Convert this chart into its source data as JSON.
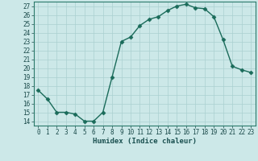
{
  "x": [
    0,
    1,
    2,
    3,
    4,
    5,
    6,
    7,
    8,
    9,
    10,
    11,
    12,
    13,
    14,
    15,
    16,
    17,
    18,
    19,
    20,
    21,
    22,
    23
  ],
  "y": [
    17.5,
    16.5,
    15.0,
    15.0,
    14.8,
    14.0,
    14.0,
    15.0,
    19.0,
    23.0,
    23.5,
    24.8,
    25.5,
    25.8,
    26.5,
    27.0,
    27.2,
    26.8,
    26.7,
    25.8,
    23.2,
    20.2,
    19.8,
    19.5
  ],
  "line_color": "#1a6b5a",
  "marker": "D",
  "marker_size": 2.5,
  "bg_color": "#cce8e8",
  "grid_color": "#aad0d0",
  "xlabel": "Humidex (Indice chaleur)",
  "xlim": [
    -0.5,
    23.5
  ],
  "ylim": [
    13.5,
    27.5
  ],
  "yticks": [
    14,
    15,
    16,
    17,
    18,
    19,
    20,
    21,
    22,
    23,
    24,
    25,
    26,
    27
  ],
  "xticks": [
    0,
    1,
    2,
    3,
    4,
    5,
    6,
    7,
    8,
    9,
    10,
    11,
    12,
    13,
    14,
    15,
    16,
    17,
    18,
    19,
    20,
    21,
    22,
    23
  ],
  "tick_fontsize": 5.5,
  "xlabel_fontsize": 6.5,
  "linewidth": 1.0
}
